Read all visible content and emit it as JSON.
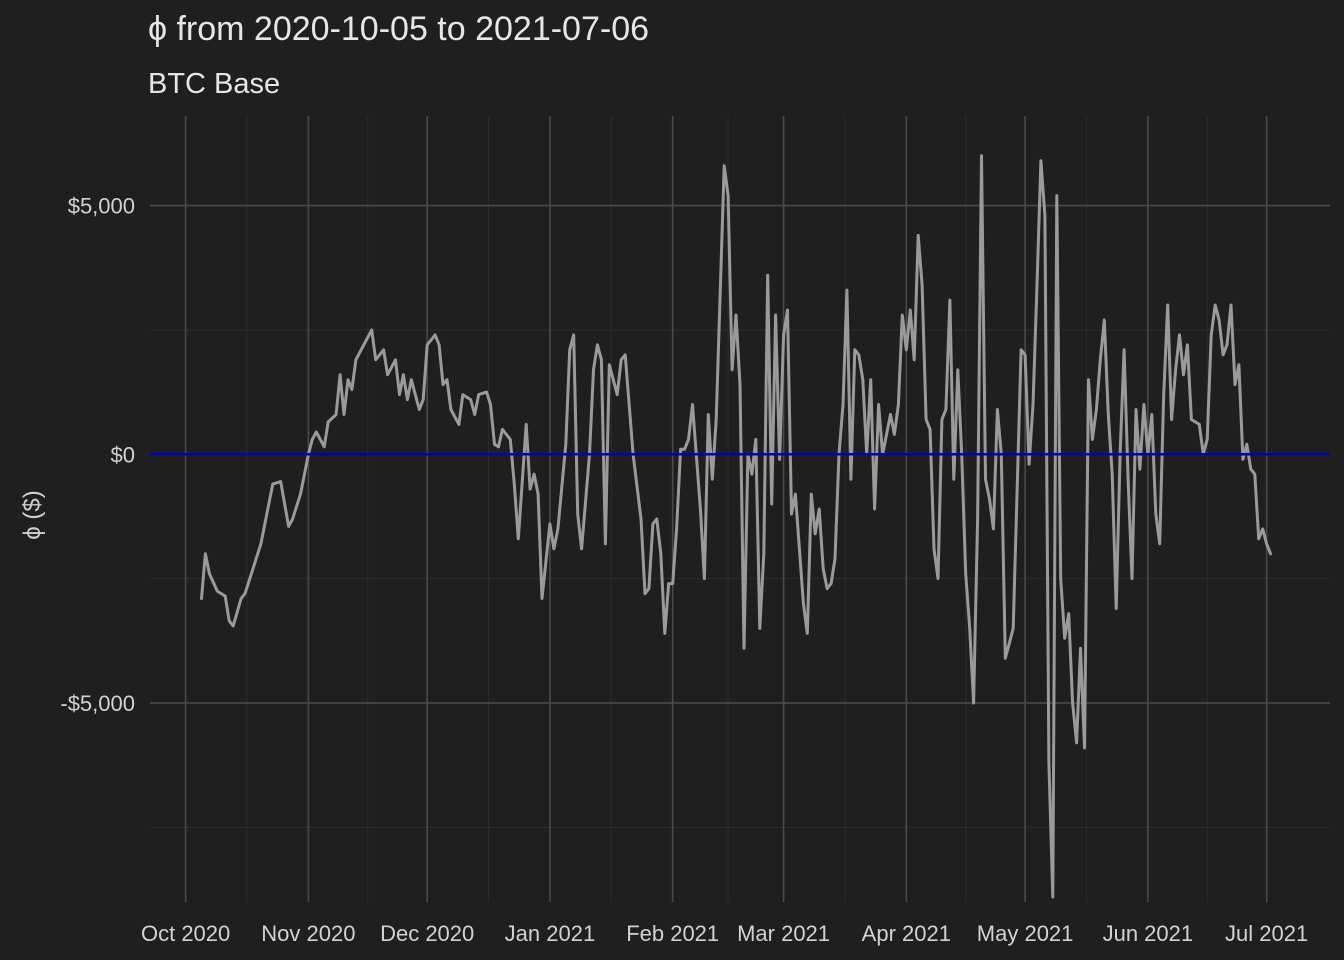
{
  "chart_data": {
    "type": "line",
    "title": "ϕ from 2020-10-05 to 2021-07-06",
    "subtitle": "BTC Base",
    "xlabel": "",
    "ylabel": "ϕ ($)",
    "x_ticks": [
      {
        "label": "Oct 2020",
        "date": "2020-10-01"
      },
      {
        "label": "Nov 2020",
        "date": "2020-11-01"
      },
      {
        "label": "Dec 2020",
        "date": "2020-12-01"
      },
      {
        "label": "Jan 2021",
        "date": "2021-01-01"
      },
      {
        "label": "Feb 2021",
        "date": "2021-02-01"
      },
      {
        "label": "Mar 2021",
        "date": "2021-03-01"
      },
      {
        "label": "Apr 2021",
        "date": "2021-04-01"
      },
      {
        "label": "May 2021",
        "date": "2021-05-01"
      },
      {
        "label": "Jun 2021",
        "date": "2021-06-01"
      },
      {
        "label": "Jul 2021",
        "date": "2021-07-01"
      }
    ],
    "y_ticks": [
      {
        "label": "$5,000",
        "value": 5000
      },
      {
        "label": "$0",
        "value": 0
      },
      {
        "label": "-$5,000",
        "value": -5000
      }
    ],
    "xlim": [
      "2020-09-22",
      "2021-07-17"
    ],
    "ylim": [
      -9000,
      6800
    ],
    "grid": true,
    "reference_line": {
      "y": 0,
      "color": "#0000c8"
    },
    "series": [
      {
        "color": "#9a9a9a",
        "points": [
          [
            "2020-10-05",
            -2900
          ],
          [
            "2020-10-06",
            -2000
          ],
          [
            "2020-10-07",
            -2400
          ],
          [
            "2020-10-09",
            -2750
          ],
          [
            "2020-10-11",
            -2850
          ],
          [
            "2020-10-12",
            -3350
          ],
          [
            "2020-10-13",
            -3450
          ],
          [
            "2020-10-15",
            -2900
          ],
          [
            "2020-10-16",
            -2800
          ],
          [
            "2020-10-18",
            -2300
          ],
          [
            "2020-10-20",
            -1800
          ],
          [
            "2020-10-22",
            -1000
          ],
          [
            "2020-10-23",
            -600
          ],
          [
            "2020-10-25",
            -550
          ],
          [
            "2020-10-27",
            -1450
          ],
          [
            "2020-10-28",
            -1300
          ],
          [
            "2020-10-30",
            -800
          ],
          [
            "2020-11-01",
            0
          ],
          [
            "2020-11-02",
            300
          ],
          [
            "2020-11-03",
            450
          ],
          [
            "2020-11-05",
            150
          ],
          [
            "2020-11-06",
            650
          ],
          [
            "2020-11-08",
            800
          ],
          [
            "2020-11-09",
            1600
          ],
          [
            "2020-11-10",
            800
          ],
          [
            "2020-11-11",
            1500
          ],
          [
            "2020-11-12",
            1300
          ],
          [
            "2020-11-13",
            1900
          ],
          [
            "2020-11-15",
            2200
          ],
          [
            "2020-11-17",
            2500
          ],
          [
            "2020-11-18",
            1900
          ],
          [
            "2020-11-20",
            2100
          ],
          [
            "2020-11-21",
            1600
          ],
          [
            "2020-11-23",
            1900
          ],
          [
            "2020-11-24",
            1200
          ],
          [
            "2020-11-25",
            1600
          ],
          [
            "2020-11-26",
            1100
          ],
          [
            "2020-11-27",
            1500
          ],
          [
            "2020-11-29",
            900
          ],
          [
            "2020-11-30",
            1100
          ],
          [
            "2020-12-01",
            2200
          ],
          [
            "2020-12-03",
            2400
          ],
          [
            "2020-12-04",
            2200
          ],
          [
            "2020-12-05",
            1400
          ],
          [
            "2020-12-06",
            1500
          ],
          [
            "2020-12-07",
            900
          ],
          [
            "2020-12-09",
            600
          ],
          [
            "2020-12-10",
            1200
          ],
          [
            "2020-12-12",
            1100
          ],
          [
            "2020-12-13",
            800
          ],
          [
            "2020-12-14",
            1200
          ],
          [
            "2020-12-16",
            1250
          ],
          [
            "2020-12-17",
            1000
          ],
          [
            "2020-12-18",
            200
          ],
          [
            "2020-12-19",
            150
          ],
          [
            "2020-12-20",
            500
          ],
          [
            "2020-12-22",
            300
          ],
          [
            "2020-12-23",
            -600
          ],
          [
            "2020-12-24",
            -1700
          ],
          [
            "2020-12-26",
            600
          ],
          [
            "2020-12-27",
            -700
          ],
          [
            "2020-12-28",
            -400
          ],
          [
            "2020-12-29",
            -800
          ],
          [
            "2020-12-30",
            -2900
          ],
          [
            "2021-01-01",
            -1400
          ],
          [
            "2021-01-02",
            -1900
          ],
          [
            "2021-01-03",
            -1500
          ],
          [
            "2021-01-05",
            200
          ],
          [
            "2021-01-06",
            2100
          ],
          [
            "2021-01-07",
            2400
          ],
          [
            "2021-01-08",
            -1200
          ],
          [
            "2021-01-09",
            -1900
          ],
          [
            "2021-01-11",
            0
          ],
          [
            "2021-01-12",
            1700
          ],
          [
            "2021-01-13",
            2200
          ],
          [
            "2021-01-14",
            1900
          ],
          [
            "2021-01-15",
            -1800
          ],
          [
            "2021-01-16",
            1800
          ],
          [
            "2021-01-18",
            1200
          ],
          [
            "2021-01-19",
            1900
          ],
          [
            "2021-01-20",
            2000
          ],
          [
            "2021-01-22",
            0
          ],
          [
            "2021-01-24",
            -1300
          ],
          [
            "2021-01-25",
            -2800
          ],
          [
            "2021-01-26",
            -2700
          ],
          [
            "2021-01-27",
            -1400
          ],
          [
            "2021-01-28",
            -1300
          ],
          [
            "2021-01-29",
            -2000
          ],
          [
            "2021-01-30",
            -3600
          ],
          [
            "2021-01-31",
            -2600
          ],
          [
            "2021-02-01",
            -2600
          ],
          [
            "2021-02-02",
            -1500
          ],
          [
            "2021-02-03",
            100
          ],
          [
            "2021-02-04",
            100
          ],
          [
            "2021-02-05",
            300
          ],
          [
            "2021-02-06",
            1000
          ],
          [
            "2021-02-08",
            -1100
          ],
          [
            "2021-02-09",
            -2500
          ],
          [
            "2021-02-10",
            800
          ],
          [
            "2021-02-11",
            -500
          ],
          [
            "2021-02-12",
            700
          ],
          [
            "2021-02-14",
            5800
          ],
          [
            "2021-02-15",
            5200
          ],
          [
            "2021-02-16",
            1700
          ],
          [
            "2021-02-17",
            2800
          ],
          [
            "2021-02-18",
            1400
          ],
          [
            "2021-02-19",
            -3900
          ],
          [
            "2021-02-20",
            0
          ],
          [
            "2021-02-21",
            -400
          ],
          [
            "2021-02-22",
            300
          ],
          [
            "2021-02-23",
            -3500
          ],
          [
            "2021-02-24",
            -2000
          ],
          [
            "2021-02-25",
            3600
          ],
          [
            "2021-02-26",
            -1000
          ],
          [
            "2021-02-27",
            2800
          ],
          [
            "2021-02-28",
            -100
          ],
          [
            "2021-03-01",
            2400
          ],
          [
            "2021-03-02",
            2900
          ],
          [
            "2021-03-03",
            -1200
          ],
          [
            "2021-03-04",
            -800
          ],
          [
            "2021-03-05",
            -1900
          ],
          [
            "2021-03-06",
            -3000
          ],
          [
            "2021-03-07",
            -3600
          ],
          [
            "2021-03-08",
            -800
          ],
          [
            "2021-03-09",
            -1600
          ],
          [
            "2021-03-10",
            -1100
          ],
          [
            "2021-03-11",
            -2300
          ],
          [
            "2021-03-12",
            -2700
          ],
          [
            "2021-03-13",
            -2600
          ],
          [
            "2021-03-14",
            -2100
          ],
          [
            "2021-03-15",
            0
          ],
          [
            "2021-03-16",
            1000
          ],
          [
            "2021-03-17",
            3300
          ],
          [
            "2021-03-18",
            -500
          ],
          [
            "2021-03-19",
            2100
          ],
          [
            "2021-03-20",
            2000
          ],
          [
            "2021-03-21",
            1500
          ],
          [
            "2021-03-22",
            0
          ],
          [
            "2021-03-23",
            1500
          ],
          [
            "2021-03-24",
            -1100
          ],
          [
            "2021-03-25",
            1000
          ],
          [
            "2021-03-26",
            0
          ],
          [
            "2021-03-28",
            800
          ],
          [
            "2021-03-29",
            400
          ],
          [
            "2021-03-30",
            1000
          ],
          [
            "2021-03-31",
            2800
          ],
          [
            "2021-04-01",
            2100
          ],
          [
            "2021-04-02",
            2900
          ],
          [
            "2021-04-03",
            1900
          ],
          [
            "2021-04-04",
            4400
          ],
          [
            "2021-04-05",
            3400
          ],
          [
            "2021-04-06",
            700
          ],
          [
            "2021-04-07",
            500
          ],
          [
            "2021-04-08",
            -1900
          ],
          [
            "2021-04-09",
            -2500
          ],
          [
            "2021-04-10",
            700
          ],
          [
            "2021-04-11",
            900
          ],
          [
            "2021-04-12",
            3100
          ],
          [
            "2021-04-13",
            -500
          ],
          [
            "2021-04-14",
            1700
          ],
          [
            "2021-04-15",
            0
          ],
          [
            "2021-04-16",
            -2400
          ],
          [
            "2021-04-17",
            -3500
          ],
          [
            "2021-04-18",
            -5000
          ],
          [
            "2021-04-19",
            -1300
          ],
          [
            "2021-04-20",
            6000
          ],
          [
            "2021-04-21",
            -500
          ],
          [
            "2021-04-22",
            -900
          ],
          [
            "2021-04-23",
            -1500
          ],
          [
            "2021-04-24",
            900
          ],
          [
            "2021-04-25",
            0
          ],
          [
            "2021-04-26",
            -4100
          ],
          [
            "2021-04-27",
            -3800
          ],
          [
            "2021-04-28",
            -3500
          ],
          [
            "2021-04-30",
            2100
          ],
          [
            "2021-05-01",
            2000
          ],
          [
            "2021-05-02",
            -200
          ],
          [
            "2021-05-03",
            1000
          ],
          [
            "2021-05-04",
            3400
          ],
          [
            "2021-05-05",
            5900
          ],
          [
            "2021-05-06",
            4800
          ],
          [
            "2021-05-07",
            -6200
          ],
          [
            "2021-05-08",
            -8900
          ],
          [
            "2021-05-09",
            5200
          ],
          [
            "2021-05-10",
            -2500
          ],
          [
            "2021-05-11",
            -3700
          ],
          [
            "2021-05-12",
            -3200
          ],
          [
            "2021-05-13",
            -5000
          ],
          [
            "2021-05-14",
            -5800
          ],
          [
            "2021-05-15",
            -3900
          ],
          [
            "2021-05-16",
            -5900
          ],
          [
            "2021-05-17",
            1500
          ],
          [
            "2021-05-18",
            300
          ],
          [
            "2021-05-19",
            900
          ],
          [
            "2021-05-20",
            1900
          ],
          [
            "2021-05-21",
            2700
          ],
          [
            "2021-05-22",
            800
          ],
          [
            "2021-05-23",
            -400
          ],
          [
            "2021-05-24",
            -3100
          ],
          [
            "2021-05-25",
            0
          ],
          [
            "2021-05-26",
            2100
          ],
          [
            "2021-05-27",
            -500
          ],
          [
            "2021-05-28",
            -2500
          ],
          [
            "2021-05-29",
            900
          ],
          [
            "2021-05-30",
            -300
          ],
          [
            "2021-05-31",
            1000
          ],
          [
            "2021-06-01",
            0
          ],
          [
            "2021-06-02",
            800
          ],
          [
            "2021-06-03",
            -1200
          ],
          [
            "2021-06-04",
            -1800
          ],
          [
            "2021-06-05",
            1200
          ],
          [
            "2021-06-06",
            3000
          ],
          [
            "2021-06-07",
            700
          ],
          [
            "2021-06-08",
            1700
          ],
          [
            "2021-06-09",
            2400
          ],
          [
            "2021-06-10",
            1600
          ],
          [
            "2021-06-11",
            2200
          ],
          [
            "2021-06-12",
            700
          ],
          [
            "2021-06-14",
            600
          ],
          [
            "2021-06-15",
            0
          ],
          [
            "2021-06-16",
            300
          ],
          [
            "2021-06-17",
            2400
          ],
          [
            "2021-06-18",
            3000
          ],
          [
            "2021-06-19",
            2700
          ],
          [
            "2021-06-20",
            2000
          ],
          [
            "2021-06-21",
            2200
          ],
          [
            "2021-06-22",
            3000
          ],
          [
            "2021-06-23",
            1400
          ],
          [
            "2021-06-24",
            1800
          ],
          [
            "2021-06-25",
            -100
          ],
          [
            "2021-06-26",
            200
          ],
          [
            "2021-06-27",
            -300
          ],
          [
            "2021-06-28",
            -400
          ],
          [
            "2021-06-29",
            -1700
          ],
          [
            "2021-06-30",
            -1500
          ],
          [
            "2021-07-01",
            -1800
          ],
          [
            "2021-07-02",
            -2000
          ]
        ]
      }
    ]
  }
}
